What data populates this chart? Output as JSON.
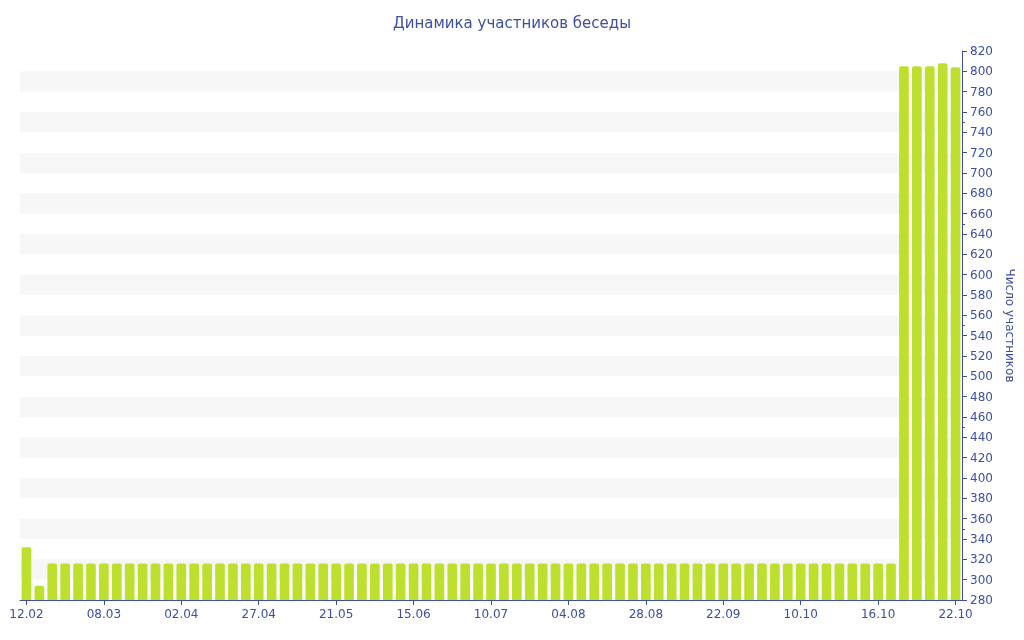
{
  "chart_data": {
    "type": "bar",
    "title": "Динамика участников беседы",
    "ylabel": "Число участников",
    "categories": [
      "12.02",
      null,
      null,
      null,
      null,
      null,
      "08.03",
      null,
      null,
      null,
      null,
      null,
      "02.04",
      null,
      null,
      null,
      null,
      null,
      "27.04",
      null,
      null,
      null,
      null,
      null,
      "21.05",
      null,
      null,
      null,
      null,
      null,
      "15.06",
      null,
      null,
      null,
      null,
      null,
      "10.07",
      null,
      null,
      null,
      null,
      null,
      "04.08",
      null,
      null,
      null,
      null,
      null,
      "28.08",
      null,
      null,
      null,
      null,
      null,
      "22.09",
      null,
      null,
      null,
      null,
      null,
      "10.10",
      null,
      null,
      null,
      null,
      null,
      "16.10",
      null,
      null,
      null,
      null,
      null,
      "22.10"
    ],
    "values": [
      332,
      294,
      316,
      316,
      316,
      316,
      316,
      316,
      316,
      316,
      316,
      316,
      316,
      316,
      316,
      316,
      316,
      316,
      316,
      316,
      316,
      316,
      316,
      316,
      316,
      316,
      316,
      316,
      316,
      316,
      316,
      316,
      316,
      316,
      316,
      316,
      316,
      316,
      316,
      316,
      316,
      316,
      316,
      316,
      316,
      316,
      316,
      316,
      316,
      316,
      316,
      316,
      316,
      316,
      316,
      316,
      316,
      316,
      316,
      316,
      316,
      316,
      316,
      316,
      316,
      316,
      316,
      316,
      805,
      805,
      805,
      808,
      804
    ],
    "color": "#bde02e",
    "ylim": [
      280,
      820
    ],
    "yticks": [
      280,
      300,
      320,
      340,
      360,
      380,
      400,
      420,
      440,
      460,
      480,
      500,
      520,
      540,
      560,
      580,
      600,
      620,
      640,
      660,
      680,
      700,
      720,
      740,
      760,
      780,
      800,
      820
    ],
    "grid": false
  }
}
